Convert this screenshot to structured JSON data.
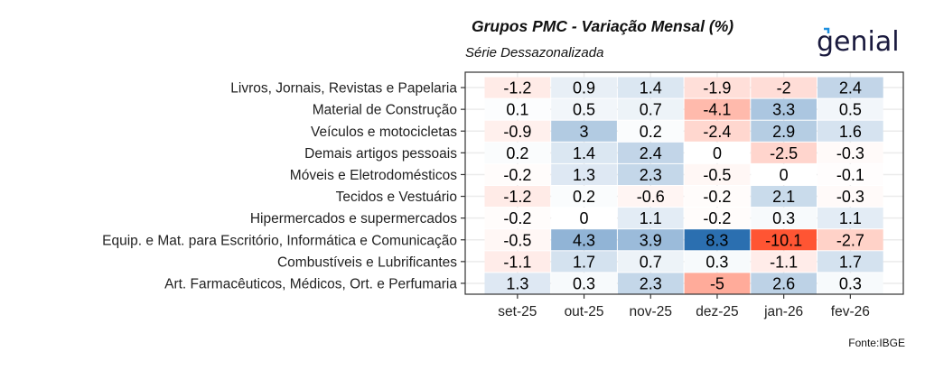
{
  "chart_data": {
    "type": "heatmap",
    "title": "Grupos PMC - Variação Mensal (%)",
    "subtitle": "Série Dessazonalizada",
    "source": "Fonte:IBGE",
    "logo_text": "genial",
    "x_categories": [
      "set-25",
      "out-25",
      "nov-25",
      "dez-25",
      "jan-26",
      "fev-26"
    ],
    "y_categories": [
      "Livros, Jornais, Revistas e Papelaria",
      "Material de Construção",
      "Veículos e motocicletas",
      "Demais artigos pessoais",
      "Móveis e Eletrodomésticos",
      "Tecidos e Vestuário",
      "Hipermercados e supermercados",
      "Equip. e Mat. para Escritório, Informática e Comunicação",
      "Combustíveis e Lubrificantes",
      "Art. Farmacêuticos, Médicos, Ort. e Perfumaria"
    ],
    "values": [
      [
        -1.2,
        0.9,
        1.4,
        -1.9,
        -2,
        2.4
      ],
      [
        0.1,
        0.5,
        0.7,
        -4.1,
        3.3,
        0.5
      ],
      [
        -0.9,
        3,
        0.2,
        -2.4,
        2.9,
        1.6
      ],
      [
        0.2,
        1.4,
        2.4,
        0,
        -2.5,
        -0.3
      ],
      [
        -0.2,
        1.3,
        2.3,
        -0.5,
        0,
        -0.1
      ],
      [
        -1.2,
        0.2,
        -0.6,
        -0.2,
        2.1,
        -0.3
      ],
      [
        -0.2,
        0,
        1.1,
        -0.2,
        0.3,
        1.1
      ],
      [
        -0.5,
        4.3,
        3.9,
        8.3,
        -10.1,
        -2.7
      ],
      [
        -1.1,
        1.7,
        0.7,
        0.3,
        -1.1,
        1.7
      ],
      [
        1.3,
        0.3,
        2.3,
        -5,
        2.6,
        0.3
      ]
    ],
    "color_scale": {
      "negative": "#ff5533",
      "zero": "#ffffff",
      "positive": "#2b6fb0",
      "neg_limit": -10.1,
      "pos_limit": 8.3
    },
    "legend": "none"
  }
}
